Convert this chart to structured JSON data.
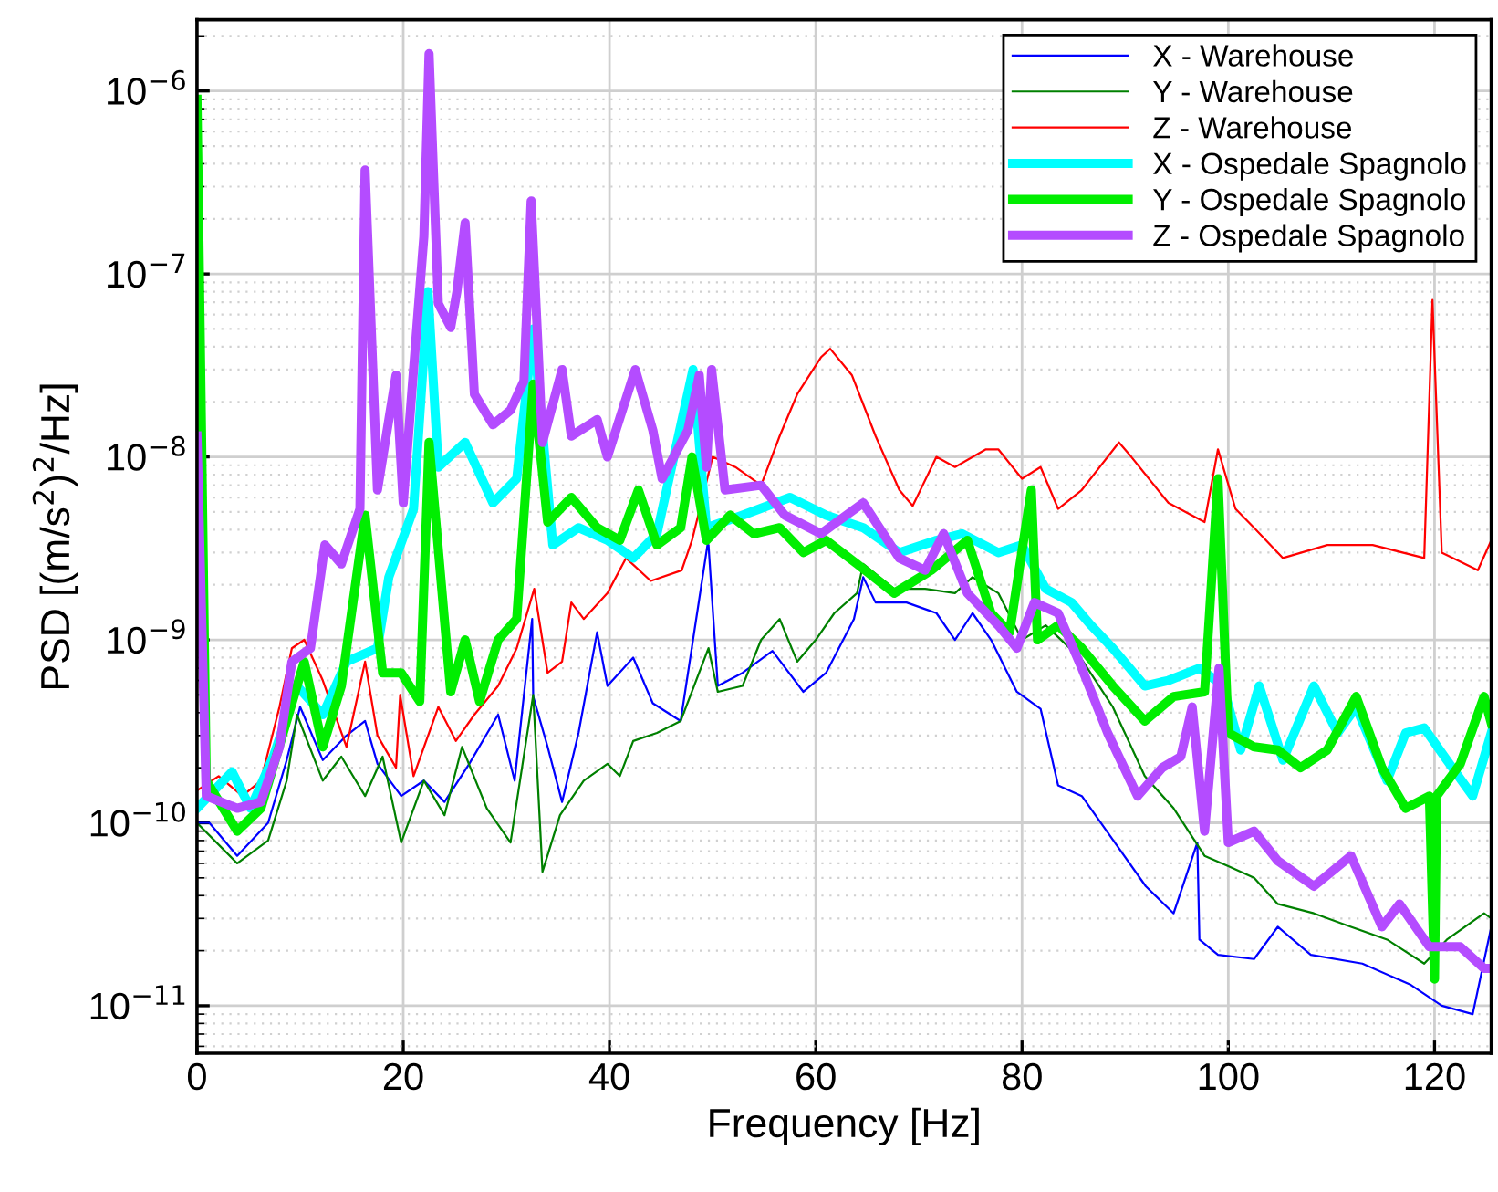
{
  "chart_data": {
    "type": "line",
    "xlabel": "Frequency [Hz]",
    "ylabel": "PSD [(m/s$^{2}$)$^{2}$/Hz]",
    "log": "y",
    "grid": true,
    "legend": "top right",
    "line_style": "solid",
    "marker": "none",
    "xlim": [
      0,
      125.5
    ],
    "xticks": [
      0,
      20,
      40,
      60,
      80,
      100,
      120
    ],
    "ylim": [
      5.5e-12,
      2.45e-06
    ],
    "yticks": [
      {
        "value": 1e-11,
        "label": "10$^{−11}$"
      },
      {
        "value": 1e-10,
        "label": "10$^{−10}$"
      },
      {
        "value": 1e-09,
        "label": "10$^{−9}$"
      },
      {
        "value": 1e-08,
        "label": "10$^{−8}$"
      },
      {
        "value": 1e-07,
        "label": "10$^{−7}$"
      },
      {
        "value": 1e-06,
        "label": "10$^{−6}$"
      }
    ],
    "series": [
      {
        "name": "X - Warehouse",
        "color": "#0000ff",
        "x": [
          0,
          1.2,
          3.9,
          6.9,
          8.7,
          10,
          12.2,
          14.5,
          16.3,
          17.5,
          19.8,
          22,
          24,
          26.4,
          29.2,
          30.8,
          32.5,
          32.6,
          34,
          35.4,
          37,
          38.8,
          39.8,
          42.3,
          44.2,
          46.9,
          49.5,
          49.6,
          50.5,
          52.9,
          55.8,
          58.8,
          61,
          63.7,
          64.6,
          65.8,
          68.8,
          71.7,
          73.5,
          75.2,
          77,
          79.5,
          81.8,
          83.5,
          85.8,
          89,
          92,
          94.7,
          97,
          97.2,
          99,
          102.5,
          104.8,
          108,
          113,
          117.7,
          120.7,
          123.7,
          125.5
        ],
        "values": [
          1e-10,
          1e-10,
          6.6e-11,
          1e-10,
          2.2e-10,
          4.3e-10,
          2.2e-10,
          3e-10,
          3.6e-10,
          2.1e-10,
          1.4e-10,
          1.7e-10,
          1.3e-10,
          2.1e-10,
          3.9e-10,
          1.7e-10,
          1.3e-09,
          4.9e-10,
          2.6e-10,
          1.3e-10,
          3.1e-10,
          1.1e-09,
          5.6e-10,
          8e-10,
          4.5e-10,
          3.6e-10,
          3.3e-09,
          3.3e-09,
          5.6e-10,
          6.6e-10,
          8.7e-10,
          5.2e-10,
          6.6e-10,
          1.3e-09,
          2.2e-09,
          1.6e-09,
          1.6e-09,
          1.4e-09,
          1e-09,
          1.4e-09,
          1e-09,
          5.2e-10,
          4.2e-10,
          1.6e-10,
          1.4e-10,
          7.8e-11,
          4.5e-11,
          3.2e-11,
          7.8e-11,
          2.3e-11,
          1.9e-11,
          1.8e-11,
          2.7e-11,
          1.9e-11,
          1.7e-11,
          1.3e-11,
          1e-11,
          9e-12,
          2.7e-11
        ]
      },
      {
        "name": "Y - Warehouse",
        "color": "#008000",
        "x": [
          0,
          3.9,
          6.9,
          8.7,
          9.7,
          12.2,
          14,
          16.3,
          18,
          19.8,
          22,
          24,
          25.7,
          28.1,
          30.4,
          32.6,
          33.5,
          35.2,
          37.5,
          39.8,
          41,
          42.3,
          44.6,
          46.9,
          49.6,
          50.5,
          52.9,
          54.7,
          56.5,
          58.2,
          60,
          61.8,
          64,
          64.6,
          67.6,
          70.6,
          73.5,
          75.2,
          77.7,
          80,
          82.3,
          85.8,
          88.8,
          91.9,
          94.7,
          97.7,
          100,
          102.5,
          104.8,
          108.3,
          111.9,
          115.4,
          119,
          121.2,
          124.8,
          125.5
        ],
        "values": [
          1e-10,
          6e-11,
          8e-11,
          1.7e-10,
          3.9e-10,
          1.7e-10,
          2.3e-10,
          1.4e-10,
          2.3e-10,
          7.8e-11,
          1.7e-10,
          1.1e-10,
          2.6e-10,
          1.2e-10,
          7.8e-11,
          5e-10,
          5.4e-11,
          1.1e-10,
          1.7e-10,
          2.1e-10,
          1.8e-10,
          2.8e-10,
          3.1e-10,
          3.6e-10,
          9e-10,
          5.2e-10,
          5.6e-10,
          1e-09,
          1.3e-09,
          7.6e-10,
          1e-09,
          1.4e-09,
          1.8e-09,
          2.6e-09,
          1.9e-09,
          1.9e-09,
          1.8e-09,
          2.2e-09,
          1.8e-09,
          1e-09,
          1.2e-09,
          7.8e-10,
          4.3e-10,
          1.8e-10,
          1.2e-10,
          6.6e-11,
          5.8e-11,
          5e-11,
          3.6e-11,
          3.2e-11,
          2.7e-11,
          2.3e-11,
          1.7e-11,
          2.3e-11,
          3.2e-11,
          3e-11
        ]
      },
      {
        "name": "Z - Warehouse",
        "color": "#ff0000",
        "x": [
          0,
          2.1,
          4.4,
          6.2,
          8,
          9.2,
          10.4,
          12.2,
          14.5,
          16.3,
          17.5,
          19.3,
          19.7,
          21,
          23.4,
          25.1,
          26.9,
          29.2,
          31,
          32.7,
          34,
          35.4,
          36.3,
          37.5,
          39.8,
          41.6,
          44,
          47,
          48,
          50,
          52.2,
          54.7,
          56.5,
          58.2,
          60.5,
          61.4,
          63.5,
          65.8,
          68.1,
          69.4,
          71.7,
          73.5,
          76.5,
          77.7,
          80,
          81.8,
          83.5,
          85.8,
          89.4,
          90.6,
          94.2,
          97.7,
          99,
          100.7,
          102.5,
          105.3,
          109.6,
          114,
          119,
          119.8,
          120.7,
          124.2,
          125.5
        ],
        "values": [
          1.5e-10,
          1.8e-10,
          1.4e-10,
          1.7e-10,
          4.3e-10,
          9e-10,
          1e-09,
          6e-10,
          2.6e-10,
          7.6e-10,
          3e-10,
          2e-10,
          5e-10,
          1.8e-10,
          4.3e-10,
          2.8e-10,
          3.9e-10,
          5.6e-10,
          9e-10,
          1.9e-09,
          6.6e-10,
          7.6e-10,
          1.6e-09,
          1.3e-09,
          1.8e-09,
          2.8e-09,
          2.1e-09,
          2.4e-09,
          3.5e-09,
          1e-08,
          8.8e-09,
          7e-09,
          1.3e-08,
          2.2e-08,
          3.5e-08,
          3.9e-08,
          2.8e-08,
          1.3e-08,
          6.6e-09,
          5.4e-09,
          1e-08,
          8.8e-09,
          1.1e-08,
          1.1e-08,
          7.6e-09,
          8.8e-09,
          5.2e-09,
          6.6e-09,
          1.2e-08,
          1e-08,
          5.6e-09,
          4.4e-09,
          1.1e-08,
          5.2e-09,
          4.1e-09,
          2.8e-09,
          3.3e-09,
          3.3e-09,
          2.8e-09,
          7.2e-08,
          3e-09,
          2.4e-09,
          3.5e-09
        ]
      },
      {
        "name": "X - Ospedale Spagnolo",
        "color": "#00ffff",
        "x": [
          0,
          3.4,
          5.2,
          7.4,
          9.7,
          12.2,
          14.5,
          17.5,
          18.6,
          21,
          22.4,
          23.4,
          26,
          28.7,
          31,
          32.6,
          34.5,
          37,
          39.8,
          42.3,
          44.6,
          48.1,
          49.4,
          52.9,
          57.5,
          61,
          64.6,
          68.1,
          71.7,
          74.2,
          77.7,
          80,
          82.3,
          84.8,
          86.7,
          88.8,
          91.9,
          94.2,
          97.2,
          99.5,
          101.2,
          103,
          105.3,
          108.3,
          110.6,
          112.4,
          115.4,
          117.2,
          119,
          121.2,
          123.7,
          125.5
        ],
        "values": [
          1.2e-10,
          1.9e-10,
          1.2e-10,
          2.3e-10,
          5.6e-10,
          3.9e-10,
          7.6e-10,
          9e-10,
          2.2e-09,
          5.2e-09,
          8e-08,
          8.8e-09,
          1.2e-08,
          5.6e-09,
          7.6e-09,
          5e-08,
          3.3e-09,
          4.1e-09,
          3.5e-09,
          2.8e-09,
          3.8e-09,
          3e-08,
          4.1e-09,
          4.8e-09,
          6e-09,
          4.8e-09,
          4.1e-09,
          3e-09,
          3.5e-09,
          3.8e-09,
          3e-09,
          3.3e-09,
          1.9e-09,
          1.6e-09,
          1.2e-09,
          9e-10,
          5.6e-10,
          6e-10,
          7e-10,
          5.6e-10,
          2.5e-10,
          5.6e-10,
          2.2e-10,
          5.6e-10,
          3.1e-10,
          4.3e-10,
          1.7e-10,
          3.1e-10,
          3.3e-10,
          2.2e-10,
          1.4e-10,
          3.1e-10
        ]
      },
      {
        "name": "Y - Ospedale Spagnolo",
        "color": "#00ee00",
        "x": [
          0,
          0.9,
          3.9,
          6.2,
          8.7,
          10.4,
          12.2,
          14,
          16.3,
          18,
          19.8,
          21.6,
          22.5,
          24.6,
          26,
          27.4,
          29.2,
          31,
          32.6,
          34,
          36.3,
          38.8,
          41,
          42.8,
          44.6,
          46.9,
          48,
          49.4,
          51.7,
          54,
          56.5,
          58.8,
          61,
          64,
          67.6,
          71.2,
          74.7,
          77,
          78.8,
          80.9,
          81.5,
          83.5,
          85.8,
          88.8,
          91.9,
          94.7,
          97.7,
          99,
          100,
          102.5,
          104.8,
          107,
          109.6,
          112.4,
          114.9,
          117.2,
          119.5,
          120,
          120.2,
          122.5,
          124.8,
          125.5
        ],
        "values": [
          9e-07,
          1.7e-10,
          9e-11,
          1.2e-10,
          3.6e-10,
          7.6e-10,
          2.6e-10,
          5.6e-10,
          4.8e-09,
          6.6e-10,
          6.6e-10,
          4.6e-10,
          1.2e-08,
          5.2e-10,
          1e-09,
          4.6e-10,
          1e-09,
          1.3e-09,
          2.5e-08,
          4.4e-09,
          6e-09,
          4.1e-09,
          3.5e-09,
          6.6e-09,
          3.3e-09,
          4.1e-09,
          1e-08,
          3.5e-09,
          4.8e-09,
          3.8e-09,
          4.1e-09,
          3e-09,
          3.5e-09,
          2.6e-09,
          1.8e-09,
          2.4e-09,
          3.5e-09,
          1.4e-09,
          1.1e-09,
          6.6e-09,
          1e-09,
          1.2e-09,
          9e-10,
          5.6e-10,
          3.6e-10,
          4.9e-10,
          5.2e-10,
          7.6e-09,
          3.1e-10,
          2.6e-10,
          2.5e-10,
          2e-10,
          2.5e-10,
          4.9e-10,
          2e-10,
          1.2e-10,
          1.4e-10,
          1.4e-11,
          1.4e-10,
          2.1e-10,
          4.9e-10,
          3.5e-10
        ]
      },
      {
        "name": "Z - Ospedale Spagnolo",
        "color": "#b44cff",
        "x": [
          0,
          0.9,
          3.9,
          6.2,
          8,
          9.2,
          11,
          12.4,
          14,
          15.8,
          16.3,
          17.5,
          19.3,
          20,
          21,
          22,
          22.5,
          23.4,
          24.6,
          25.2,
          26,
          26.9,
          28.7,
          30.4,
          31.7,
          32.4,
          33.5,
          35.4,
          36.3,
          38.8,
          39.8,
          42.5,
          44.2,
          45.1,
          47.6,
          48.7,
          49.4,
          49.9,
          51.2,
          54.7,
          57,
          60.5,
          64.6,
          68.1,
          70.6,
          72.4,
          74.7,
          77.7,
          79.5,
          81.2,
          83.5,
          85.8,
          88.3,
          91.2,
          93.6,
          95.4,
          96.5,
          97.7,
          99.1,
          100,
          102.5,
          104.8,
          108.3,
          111.9,
          114.9,
          116.6,
          119.5,
          122.5,
          124.8,
          125.5
        ],
        "values": [
          1.3e-08,
          1.4e-10,
          1.2e-10,
          1.3e-10,
          2.6e-10,
          7.6e-10,
          9e-10,
          3.3e-09,
          2.6e-09,
          5.2e-09,
          3.7e-07,
          6.6e-09,
          2.8e-08,
          5.6e-09,
          3e-08,
          1.6e-07,
          1.6e-06,
          6.9e-08,
          5.1e-08,
          8e-08,
          1.9e-07,
          2.2e-08,
          1.5e-08,
          1.8e-08,
          2.6e-08,
          2.5e-07,
          1.2e-08,
          3e-08,
          1.3e-08,
          1.6e-08,
          1e-08,
          3e-08,
          1.4e-08,
          7.6e-09,
          1.4e-08,
          2.8e-08,
          8.8e-09,
          3e-08,
          6.6e-09,
          7e-09,
          4.8e-09,
          3.8e-09,
          5.6e-09,
          2.8e-09,
          2.4e-09,
          3.8e-09,
          1.8e-09,
          1.2e-09,
          9e-10,
          1.6e-09,
          1.4e-09,
          7e-10,
          3.1e-10,
          1.4e-10,
          2e-10,
          2.3e-10,
          4.3e-10,
          9e-11,
          7e-10,
          7.8e-11,
          9e-11,
          6.2e-11,
          4.5e-11,
          6.6e-11,
          2.7e-11,
          3.6e-11,
          2.1e-11,
          2.1e-11,
          1.6e-11,
          1.6e-11
        ]
      }
    ]
  }
}
